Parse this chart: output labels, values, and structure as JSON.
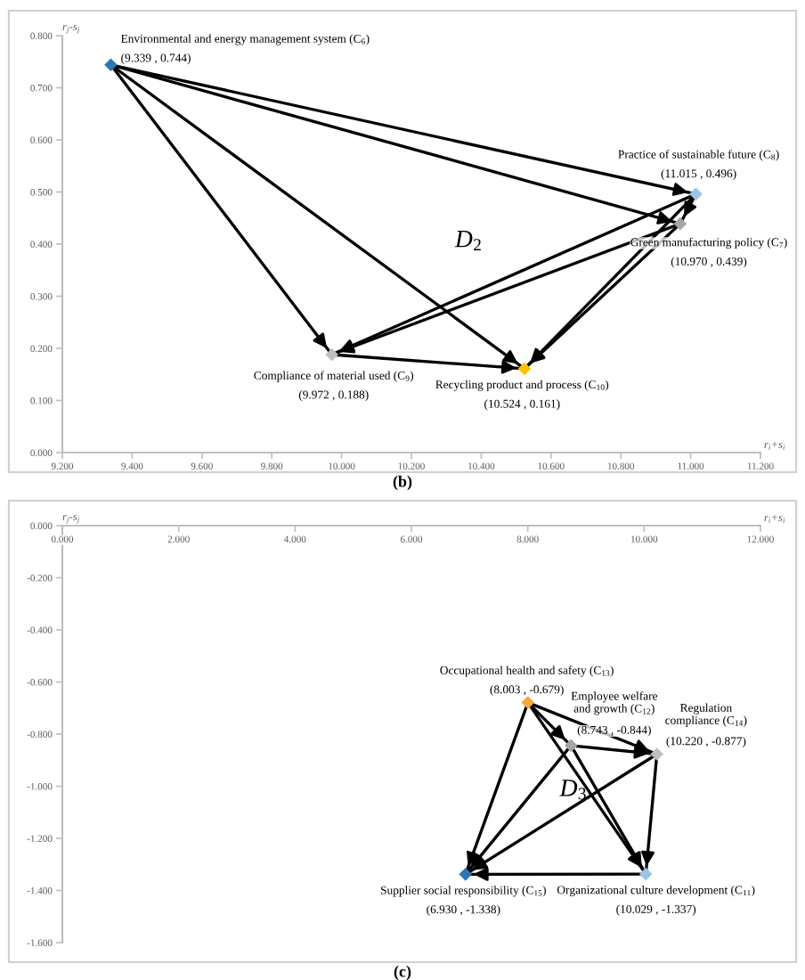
{
  "chart_data": [
    {
      "type": "scatter",
      "title": "(b)",
      "xlabel": "r$_{i}$+s$_{i}$",
      "ylabel": "r$_{j}$-s$_{j}$",
      "annotations": [
        "D$_{2}$"
      ],
      "marker": "diamond",
      "xlim": [
        9.2,
        11.2
      ],
      "xticks": [
        {
          "value": 9.2,
          "label": "9.200"
        },
        {
          "value": 9.4,
          "label": "9.400"
        },
        {
          "value": 9.6,
          "label": "9.600"
        },
        {
          "value": 9.8,
          "label": "9.800"
        },
        {
          "value": 10.0,
          "label": "10.000"
        },
        {
          "value": 10.2,
          "label": "10.200"
        },
        {
          "value": 10.4,
          "label": "10.400"
        },
        {
          "value": 10.6,
          "label": "10.600"
        },
        {
          "value": 10.8,
          "label": "10.800"
        },
        {
          "value": 11.0,
          "label": "11.000"
        },
        {
          "value": 11.2,
          "label": "11.200"
        }
      ],
      "ylim": [
        0,
        0.8
      ],
      "yticks": [
        {
          "value": 0,
          "label": "0.000"
        },
        {
          "value": 0.1,
          "label": "0.100"
        },
        {
          "value": 0.2,
          "label": "0.200"
        },
        {
          "value": 0.3,
          "label": "0.300"
        },
        {
          "value": 0.4,
          "label": "0.400"
        },
        {
          "value": 0.5,
          "label": "0.500"
        },
        {
          "value": 0.6,
          "label": "0.600"
        },
        {
          "value": 0.7,
          "label": "0.700"
        },
        {
          "value": 0.8,
          "label": "0.800"
        }
      ],
      "series": [
        {
          "type": "line",
          "marker": "none",
          "color": "#000000",
          "x": [
            9.339,
            11.015
          ],
          "values": [
            0.744,
            0.496
          ]
        },
        {
          "type": "line",
          "marker": "none",
          "color": "#000000",
          "x": [
            9.339,
            10.97
          ],
          "values": [
            0.744,
            0.439
          ]
        },
        {
          "type": "line",
          "marker": "none",
          "color": "#000000",
          "x": [
            9.339,
            9.972
          ],
          "values": [
            0.744,
            0.188
          ]
        },
        {
          "type": "line",
          "marker": "none",
          "color": "#000000",
          "x": [
            9.339,
            10.524
          ],
          "values": [
            0.744,
            0.161
          ]
        },
        {
          "type": "line",
          "marker": "none",
          "color": "#000000",
          "x": [
            11.015,
            10.97
          ],
          "values": [
            0.496,
            0.439
          ]
        },
        {
          "type": "line",
          "marker": "none",
          "color": "#000000",
          "x": [
            11.015,
            9.972
          ],
          "values": [
            0.496,
            0.188
          ]
        },
        {
          "type": "line",
          "marker": "none",
          "color": "#000000",
          "x": [
            10.97,
            9.972
          ],
          "values": [
            0.439,
            0.188
          ]
        },
        {
          "type": "line",
          "marker": "none",
          "color": "#000000",
          "x": [
            11.015,
            10.524
          ],
          "values": [
            0.496,
            0.161
          ]
        },
        {
          "type": "line",
          "marker": "none",
          "color": "#000000",
          "x": [
            10.97,
            10.524
          ],
          "values": [
            0.439,
            0.161
          ]
        },
        {
          "type": "line",
          "marker": "none",
          "color": "#000000",
          "x": [
            9.972,
            10.524
          ],
          "values": [
            0.188,
            0.161
          ]
        },
        {
          "name": "Environmental and energy management system (C$_{6}$)",
          "color": "#2e75b6",
          "x": [
            9.339
          ],
          "values": [
            0.744
          ],
          "value_labels": [
            "(9.339 , 0.744)"
          ]
        },
        {
          "name": "Practice of sustainable future (C$_{8}$)",
          "color": "#9dc3e6",
          "x": [
            11.015
          ],
          "values": [
            0.496
          ],
          "value_labels": [
            "(11.015 , 0.496)"
          ]
        },
        {
          "name": "Green manufacturing policy (C$_{7}$)",
          "color": "#a5a5a5",
          "x": [
            10.97
          ],
          "values": [
            0.439
          ],
          "value_labels": [
            "(10.970 , 0.439)"
          ]
        },
        {
          "name": "Compliance of material used (C$_{9}$)",
          "color": "#bfbfbf",
          "x": [
            9.972
          ],
          "values": [
            0.188
          ],
          "value_labels": [
            "(9.972 , 0.188)"
          ]
        },
        {
          "name": "Recycling product and process (C$_{10}$)",
          "color": "#ffc000",
          "x": [
            10.524
          ],
          "values": [
            0.161
          ],
          "value_labels": [
            "(10.524 , 0.161)"
          ]
        }
      ]
    },
    {
      "type": "scatter",
      "title": "(c)",
      "xlabel": "r$_{i}$+s$_{i}$",
      "ylabel": "r$_{j}$-s$_{j}$",
      "annotations": [
        "D$_{3}$"
      ],
      "marker": "diamond",
      "xlim": [
        0,
        12
      ],
      "xticks": [
        {
          "value": 0,
          "label": "0.000"
        },
        {
          "value": 2,
          "label": "2.000"
        },
        {
          "value": 4,
          "label": "4.000"
        },
        {
          "value": 6,
          "label": "6.000"
        },
        {
          "value": 8,
          "label": "8.000"
        },
        {
          "value": 10,
          "label": "10.000"
        },
        {
          "value": 12,
          "label": "12.000"
        }
      ],
      "ylim": [
        -1.6,
        0
      ],
      "yticks": [
        {
          "value": 0,
          "label": "0.000"
        },
        {
          "value": -0.2,
          "label": "-0.200"
        },
        {
          "value": -0.4,
          "label": "-0.400"
        },
        {
          "value": -0.6,
          "label": "-0.600"
        },
        {
          "value": -0.8,
          "label": "-0.800"
        },
        {
          "value": -1.0,
          "label": "-1.000"
        },
        {
          "value": -1.2,
          "label": "-1.200"
        },
        {
          "value": -1.4,
          "label": "-1.400"
        },
        {
          "value": -1.6,
          "label": "-1.600"
        }
      ],
      "series": [
        {
          "type": "line",
          "marker": "none",
          "color": "#000000",
          "x": [
            8.003,
            8.743
          ],
          "values": [
            -0.679,
            -0.844
          ]
        },
        {
          "type": "line",
          "marker": "none",
          "color": "#000000",
          "x": [
            8.003,
            10.22
          ],
          "values": [
            -0.679,
            -0.877
          ]
        },
        {
          "type": "line",
          "marker": "none",
          "color": "#000000",
          "x": [
            8.003,
            6.93
          ],
          "values": [
            -0.679,
            -1.338
          ]
        },
        {
          "type": "line",
          "marker": "none",
          "color": "#000000",
          "x": [
            8.003,
            10.029
          ],
          "values": [
            -0.679,
            -1.337
          ]
        },
        {
          "type": "line",
          "marker": "none",
          "color": "#000000",
          "x": [
            8.743,
            10.22
          ],
          "values": [
            -0.844,
            -0.877
          ]
        },
        {
          "type": "line",
          "marker": "none",
          "color": "#000000",
          "x": [
            8.743,
            6.93
          ],
          "values": [
            -0.844,
            -1.338
          ]
        },
        {
          "type": "line",
          "marker": "none",
          "color": "#000000",
          "x": [
            8.743,
            10.029
          ],
          "values": [
            -0.844,
            -1.337
          ]
        },
        {
          "type": "line",
          "marker": "none",
          "color": "#000000",
          "x": [
            10.22,
            6.93
          ],
          "values": [
            -0.877,
            -1.338
          ]
        },
        {
          "type": "line",
          "marker": "none",
          "color": "#000000",
          "x": [
            10.22,
            10.029
          ],
          "values": [
            -0.877,
            -1.337
          ]
        },
        {
          "type": "line",
          "marker": "none",
          "color": "#000000",
          "x": [
            10.029,
            6.93
          ],
          "values": [
            -1.337,
            -1.338
          ]
        },
        {
          "name": "Occupational health and safety (C$_{13}$)",
          "color": "#f4a83a",
          "x": [
            8.003
          ],
          "values": [
            -0.679
          ],
          "value_labels": [
            "(8.003 , -0.679)"
          ]
        },
        {
          "name": "Employee welfare and growth (C$_{12}$)",
          "color": "#a5a5a5",
          "x": [
            8.743
          ],
          "values": [
            -0.844
          ],
          "value_labels": [
            "(8.743 , -0.844)"
          ]
        },
        {
          "name": "Regulation compliance (C$_{14}$)",
          "color": "#bfbfbf",
          "x": [
            10.22
          ],
          "values": [
            -0.877
          ],
          "value_labels": [
            "(10.220 , -0.877)"
          ]
        },
        {
          "name": "Supplier social responsibility (C$_{15}$)",
          "color": "#2e75b6",
          "x": [
            6.93
          ],
          "values": [
            -1.338
          ],
          "value_labels": [
            "(6.930 , -1.338)"
          ]
        },
        {
          "name": "Organizational culture development (C$_{11}$)",
          "color": "#9dc3e6",
          "x": [
            10.029
          ],
          "values": [
            -1.337
          ],
          "value_labels": [
            "(10.029 , -1.337)"
          ]
        }
      ]
    }
  ]
}
